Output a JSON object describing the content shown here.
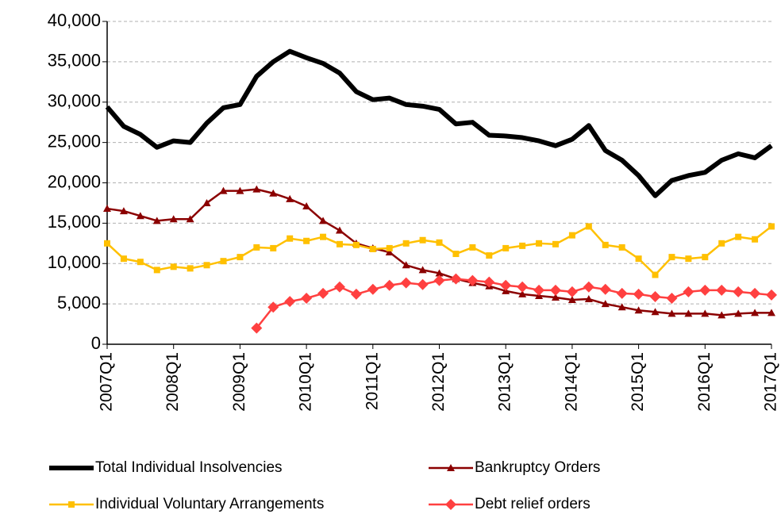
{
  "chart_data": {
    "type": "line",
    "categories": [
      "2007Q1",
      null,
      null,
      null,
      "2008Q1",
      null,
      null,
      null,
      "2009Q1",
      null,
      null,
      null,
      "2010Q1",
      null,
      null,
      null,
      "2011Q1",
      null,
      null,
      null,
      "2012Q1",
      null,
      null,
      null,
      "2013Q1",
      null,
      null,
      null,
      "2014Q1",
      null,
      null,
      null,
      "2015Q1",
      null,
      null,
      null,
      "2016Q1",
      null,
      null,
      null,
      "2017Q1"
    ],
    "series": [
      {
        "name": "Total Individual Insolvencies",
        "color": "#000000",
        "values": [
          29400,
          27000,
          26000,
          24400,
          25200,
          25000,
          27400,
          29300,
          29700,
          33200,
          35000,
          36300,
          35500,
          34800,
          33600,
          31300,
          30300,
          30500,
          29700,
          29500,
          29100,
          27300,
          27500,
          25900,
          25800,
          25600,
          25200,
          24600,
          25400,
          27100,
          24000,
          22800,
          20900,
          18400,
          20300,
          20900,
          21300,
          22800,
          23600,
          23100,
          24600
        ]
      },
      {
        "name": "Bankruptcy Orders",
        "color": "#8b0000",
        "marker": "triangle",
        "values": [
          16800,
          16500,
          15900,
          15300,
          15500,
          15500,
          17500,
          19000,
          19000,
          19200,
          18700,
          18000,
          17100,
          15300,
          14100,
          12500,
          11900,
          11400,
          9800,
          9200,
          8800,
          8100,
          7600,
          7200,
          6600,
          6200,
          6000,
          5800,
          5500,
          5600,
          5000,
          4600,
          4200,
          4000,
          3800,
          3800,
          3800,
          3600,
          3800,
          3900,
          3900
        ]
      },
      {
        "name": "Individual Voluntary Arrangements",
        "color": "#ffc000",
        "marker": "square",
        "values": [
          12500,
          10600,
          10200,
          9200,
          9600,
          9400,
          9800,
          10300,
          10800,
          12000,
          11900,
          13100,
          12800,
          13300,
          12400,
          12300,
          11800,
          11900,
          12500,
          12900,
          12600,
          11200,
          12000,
          11000,
          11900,
          12200,
          12500,
          12400,
          13500,
          14600,
          12300,
          12000,
          10600,
          8600,
          10800,
          10600,
          10800,
          12500,
          13300,
          13000,
          14600
        ]
      },
      {
        "name": "Debt relief orders",
        "color": "#ff4040",
        "marker": "diamond",
        "values": [
          null,
          null,
          null,
          null,
          null,
          null,
          null,
          null,
          null,
          2000,
          4600,
          5300,
          5700,
          6300,
          7100,
          6200,
          6800,
          7300,
          7600,
          7400,
          7900,
          8100,
          7900,
          7700,
          7300,
          7100,
          6700,
          6700,
          6500,
          7100,
          6800,
          6300,
          6200,
          5900,
          5700,
          6500,
          6700,
          6700,
          6500,
          6300,
          6100
        ]
      }
    ],
    "ylim": [
      0,
      40000
    ],
    "yticks": [
      0,
      {
        "value": 5000,
        "label": "5,000"
      },
      {
        "value": 10000,
        "label": "10,000"
      },
      {
        "value": 15000,
        "label": "15,000"
      },
      {
        "value": 20000,
        "label": "20,000"
      },
      {
        "value": 25000,
        "label": "25,000"
      },
      {
        "value": 30000,
        "label": "30,000"
      },
      {
        "value": 35000,
        "label": "35,000"
      },
      {
        "value": 40000,
        "label": "40,000"
      }
    ],
    "grid": true
  }
}
